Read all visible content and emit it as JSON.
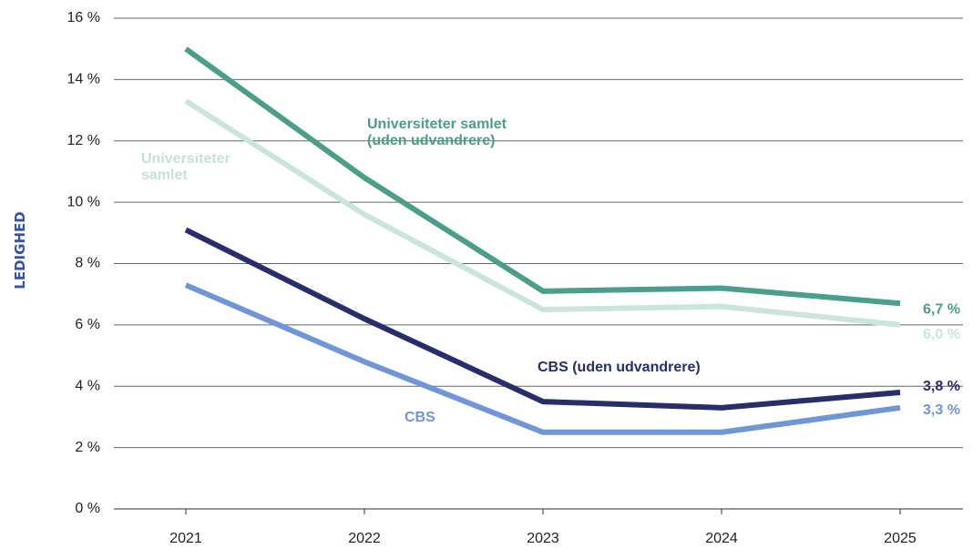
{
  "chart_data": {
    "type": "line",
    "y_label": "LEDIGHED",
    "categories": [
      "2021",
      "2022",
      "2023",
      "2024",
      "2025"
    ],
    "ylim": [
      0,
      16
    ],
    "yticks": [
      {
        "value": 0,
        "label": "0 %"
      },
      {
        "value": 2,
        "label": "2 %"
      },
      {
        "value": 4,
        "label": "4 %"
      },
      {
        "value": 6,
        "label": "6 %"
      },
      {
        "value": 8,
        "label": "8 %"
      },
      {
        "value": 10,
        "label": "10 %"
      },
      {
        "value": 12,
        "label": "12 %"
      },
      {
        "value": 14,
        "label": "14 %"
      },
      {
        "value": 16,
        "label": "16 %"
      }
    ],
    "grid": true,
    "series": [
      {
        "name": "Universiteter samlet (uden udvandrere)",
        "color": "#4a9e8a",
        "values": [
          15.0,
          10.8,
          7.1,
          7.2,
          6.7
        ],
        "value_labels": [
          null,
          null,
          null,
          null,
          "6,7 %"
        ]
      },
      {
        "name": "Universiteter samlet",
        "color": "#c9e6d8",
        "values": [
          13.3,
          9.6,
          6.5,
          6.6,
          6.0
        ],
        "value_labels": [
          null,
          null,
          null,
          null,
          "6,0 %"
        ]
      },
      {
        "name": "CBS (uden udvandrere)",
        "color": "#272e6b",
        "values": [
          9.1,
          6.2,
          3.5,
          3.3,
          3.8
        ],
        "value_labels": [
          null,
          null,
          null,
          null,
          "3,8 %"
        ]
      },
      {
        "name": "CBS",
        "color": "#6f96d6",
        "values": [
          7.3,
          4.8,
          2.5,
          2.5,
          3.3
        ],
        "value_labels": [
          null,
          null,
          null,
          null,
          "3,3 %"
        ]
      }
    ]
  }
}
